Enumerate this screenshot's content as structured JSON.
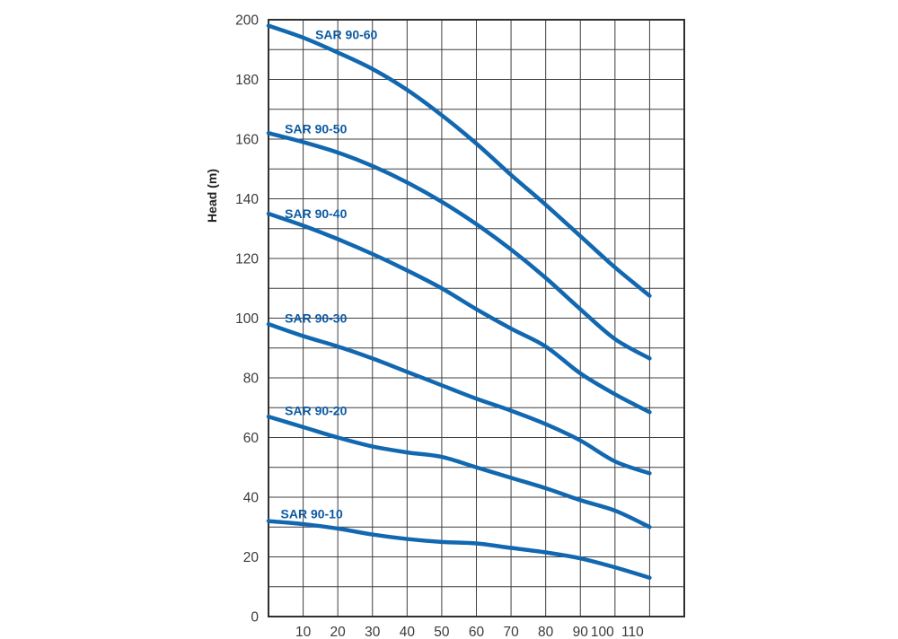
{
  "chart_data": {
    "type": "line",
    "title": "",
    "xlabel": "",
    "ylabel": "Head (m)",
    "xlim": [
      0,
      120
    ],
    "ylim": [
      0,
      200
    ],
    "x_tick_labels": [
      10,
      20,
      30,
      40,
      50,
      60,
      70,
      80,
      90,
      100,
      110
    ],
    "y_tick_labels": [
      0,
      20,
      40,
      60,
      80,
      100,
      120,
      140,
      160,
      180,
      200
    ],
    "grid": "on",
    "grid_step": {
      "x": 10,
      "y": 10
    },
    "legend_position": "inline-curve-labels",
    "x": [
      0,
      10,
      20,
      30,
      40,
      50,
      60,
      70,
      80,
      90,
      100,
      110
    ],
    "series": [
      {
        "name": "SAR 90-60",
        "values": [
          198,
          194,
          189,
          183.5,
          176.5,
          168,
          158.5,
          148,
          138,
          127.5,
          117,
          107.5
        ],
        "label_at": {
          "x": 13.5,
          "y": 195
        }
      },
      {
        "name": "SAR 90-50",
        "values": [
          162,
          159,
          155.5,
          151,
          145.5,
          139,
          131.5,
          123,
          113.5,
          103,
          93,
          86.5
        ],
        "label_at": {
          "x": 4.7,
          "y": 163.5
        }
      },
      {
        "name": "SAR 90-40",
        "values": [
          135,
          131,
          126.5,
          121.5,
          116,
          110,
          103,
          96.5,
          90.5,
          81.5,
          74.5,
          68.5
        ],
        "label_at": {
          "x": 4.7,
          "y": 135
        }
      },
      {
        "name": "SAR 90-30",
        "values": [
          98,
          94,
          90.5,
          86.5,
          82,
          77.5,
          73,
          69,
          64.5,
          59,
          52,
          48
        ],
        "label_at": {
          "x": 4.7,
          "y": 100
        }
      },
      {
        "name": "SAR 90-20",
        "values": [
          67,
          63.5,
          60,
          57,
          55,
          53.5,
          50,
          46.5,
          43,
          39,
          35.5,
          30
        ],
        "label_at": {
          "x": 4.7,
          "y": 69
        }
      },
      {
        "name": "SAR 90-10",
        "values": [
          32,
          31,
          29.5,
          27.5,
          26,
          25,
          24.5,
          23,
          21.5,
          19.5,
          16.5,
          13
        ],
        "label_at": {
          "x": 3.5,
          "y": 34.5
        }
      }
    ],
    "colors": {
      "curve": "#1268b0",
      "series_label": "#0d5aa3",
      "grid": "#3f3f3f",
      "border": "#2f2f2f",
      "tick_text": "#3a3a3a",
      "background": "#ffffff"
    }
  }
}
